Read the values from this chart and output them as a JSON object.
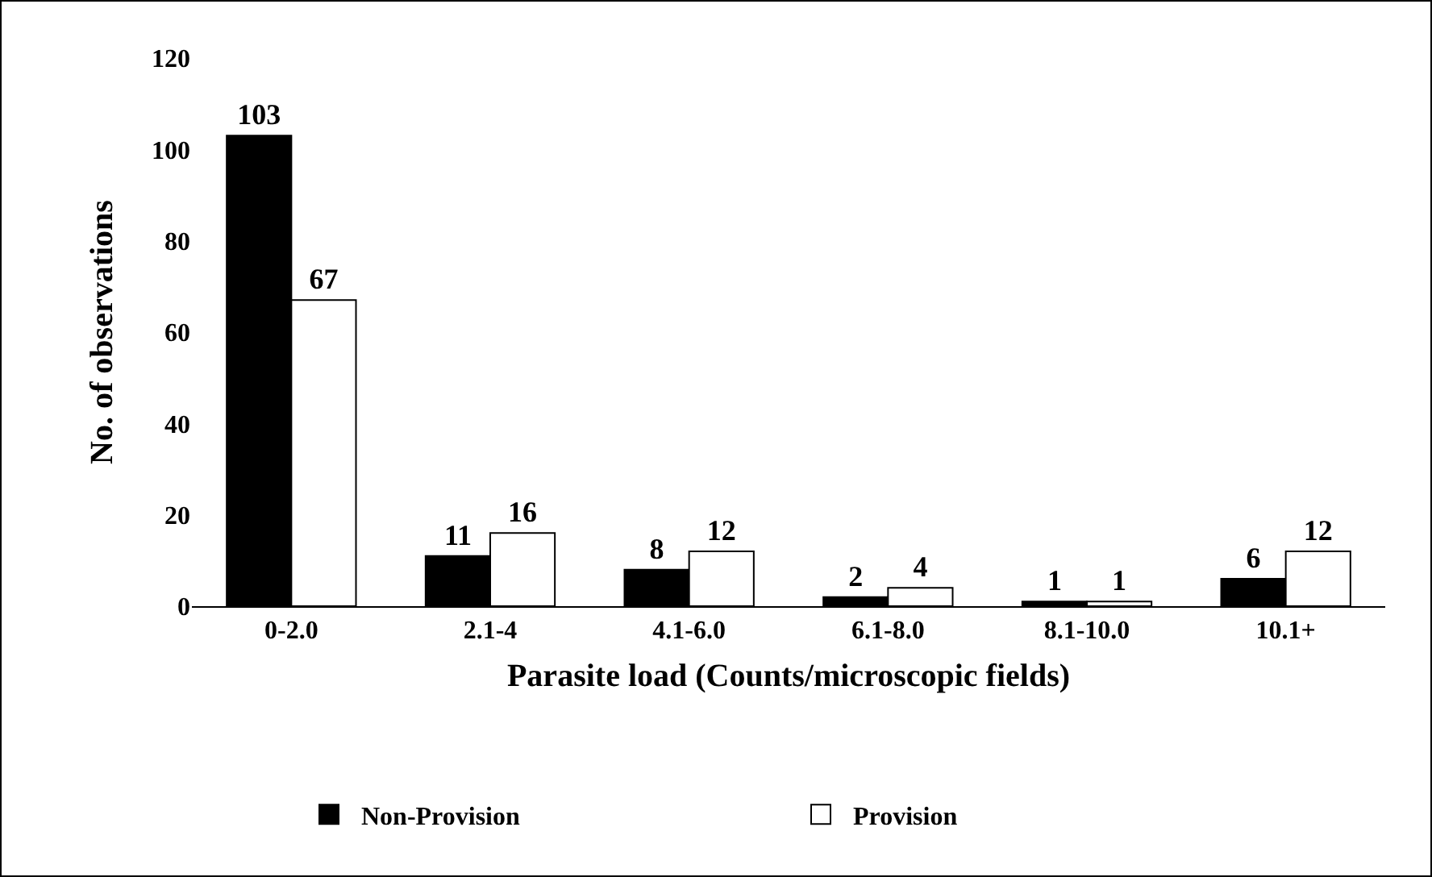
{
  "chart_data": {
    "type": "bar",
    "xlabel": "Parasite load (Counts/microscopic fields)",
    "ylabel": "No. of observations",
    "categories": [
      "0-2.0",
      "2.1-4",
      "4.1-6.0",
      "6.1-8.0",
      "8.1-10.0",
      "10.1+"
    ],
    "series": [
      {
        "name": "Non-Provision",
        "color": "#000000",
        "values": [
          103,
          11,
          8,
          2,
          1,
          6
        ]
      },
      {
        "name": "Provision",
        "color": "#ffffff",
        "values": [
          67,
          16,
          12,
          4,
          1,
          12
        ]
      }
    ],
    "ylim": [
      0,
      120
    ],
    "yticks": [
      0,
      20,
      40,
      60,
      80,
      100,
      120
    ],
    "grid": false,
    "legend": "bottom",
    "data_labels": true
  }
}
